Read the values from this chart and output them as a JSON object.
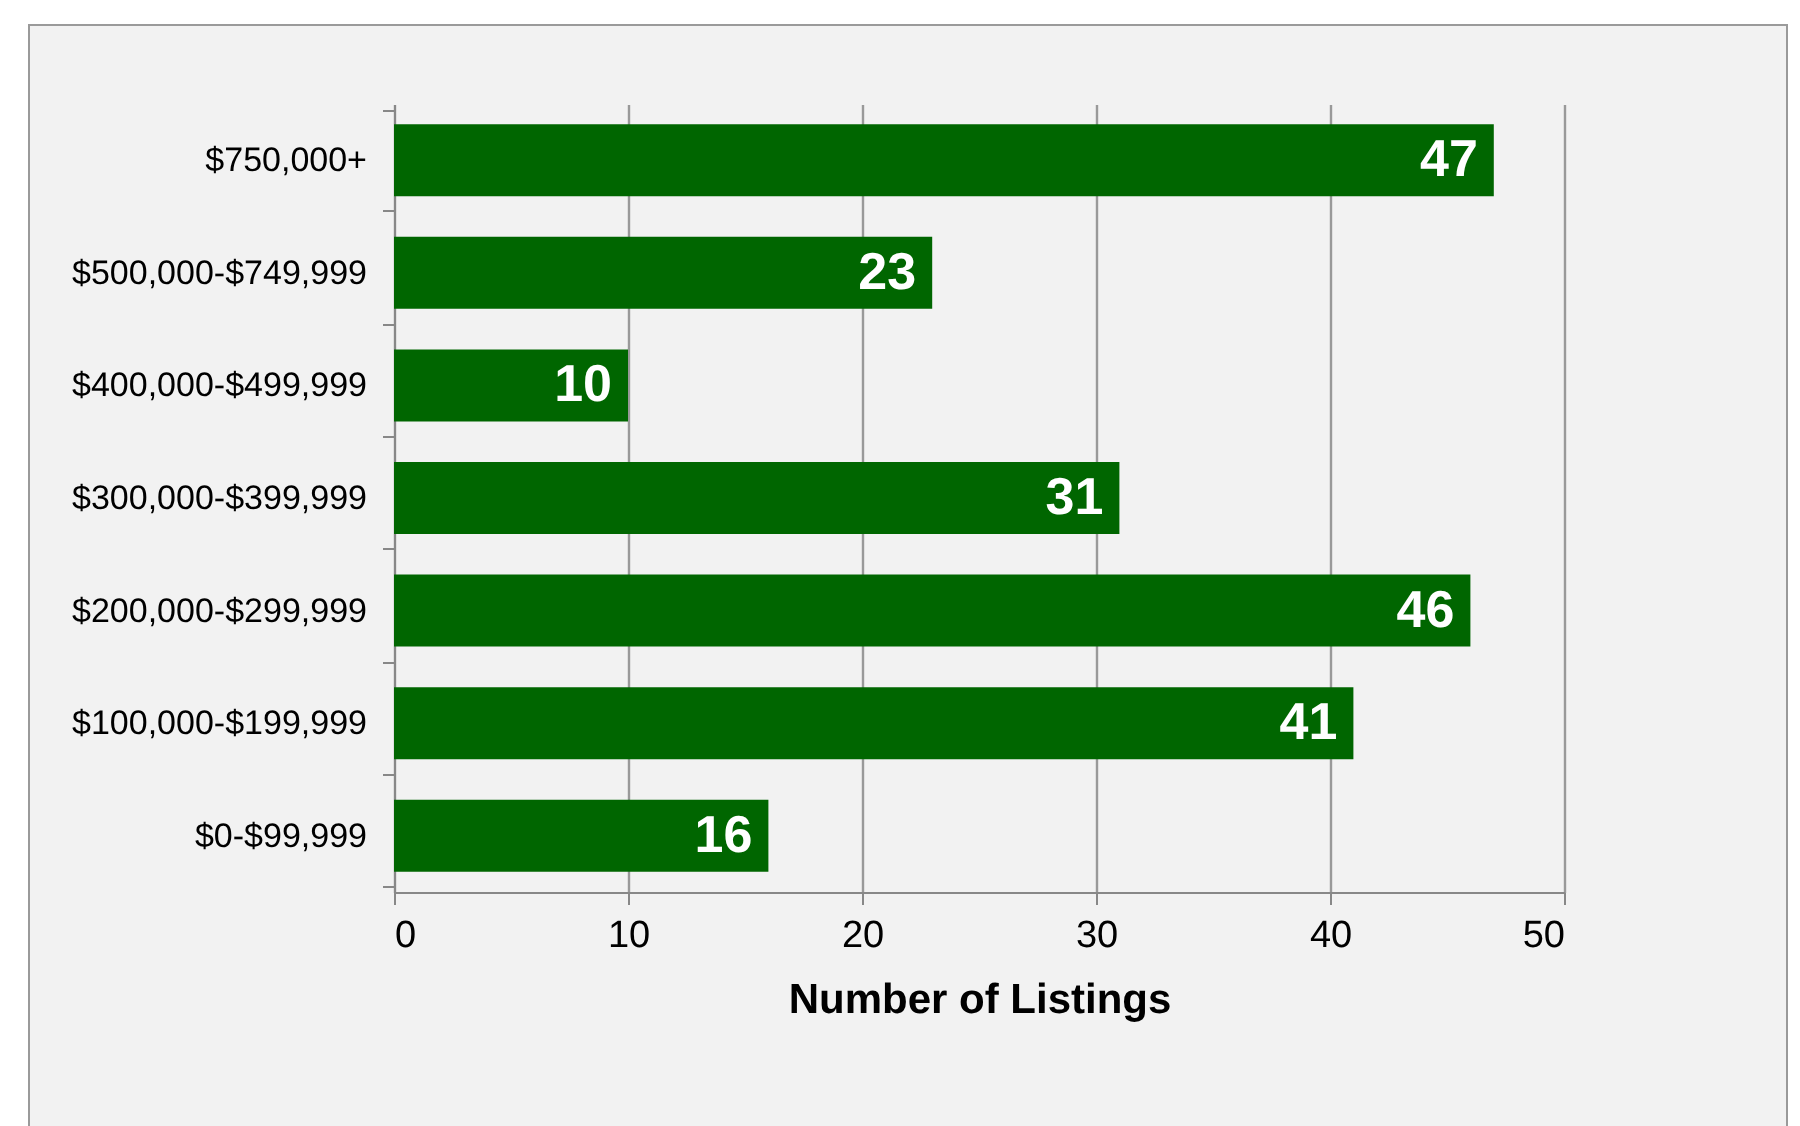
{
  "chart_data": {
    "type": "bar",
    "orientation": "horizontal",
    "xlabel": "Number of Listings",
    "categories": [
      "$750,000+",
      "$500,000-$749,999",
      "$400,000-$499,999",
      "$300,000-$399,999",
      "$200,000-$299,999",
      "$100,000-$199,999",
      "$0-$99,999"
    ],
    "values": [
      47,
      23,
      10,
      31,
      46,
      41,
      16
    ],
    "color": "#006600",
    "xlim": [
      0,
      50
    ],
    "xticks": [
      0,
      10,
      20,
      30,
      40,
      50
    ],
    "grid": "x",
    "data_labels": true
  }
}
